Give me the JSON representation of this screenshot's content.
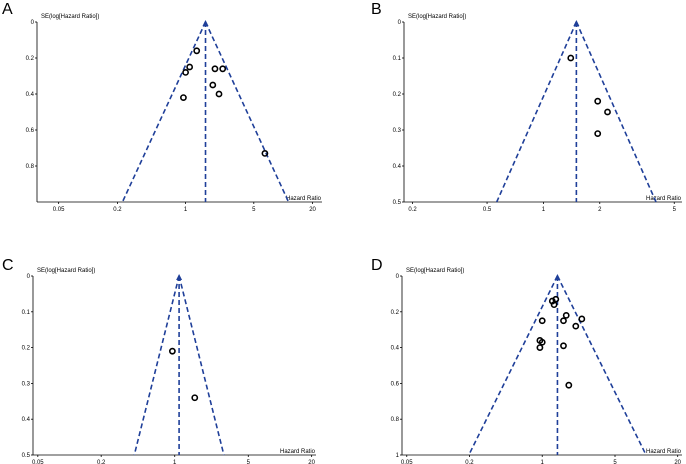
{
  "chart_data": [
    {
      "type": "scatter",
      "panel": "A",
      "title": "",
      "ylabel": "SE(log[Hazard Ratio])",
      "xlabel": "Hazard Ratio",
      "xscale": "log",
      "xlim": [
        0.03,
        25
      ],
      "ylim": [
        0,
        1
      ],
      "xticks": [
        0.05,
        0.2,
        1,
        5,
        20
      ],
      "xtick_labels": [
        "0.05",
        "0.2",
        "1",
        "5",
        "20"
      ],
      "yticks": [
        0,
        0.2,
        0.4,
        0.6,
        0.8
      ],
      "ytick_labels": [
        "0",
        "0.2",
        "0.4",
        "0.6",
        "0.8"
      ],
      "pooled_hr": 1.6,
      "points": [
        {
          "hr": 1.3,
          "se": 0.16
        },
        {
          "hr": 1.1,
          "se": 0.25
        },
        {
          "hr": 1.0,
          "se": 0.28
        },
        {
          "hr": 2.0,
          "se": 0.26
        },
        {
          "hr": 2.4,
          "se": 0.26
        },
        {
          "hr": 1.9,
          "se": 0.35
        },
        {
          "hr": 2.2,
          "se": 0.4
        },
        {
          "hr": 0.95,
          "se": 0.42
        },
        {
          "hr": 6.5,
          "se": 0.73
        }
      ]
    },
    {
      "type": "scatter",
      "panel": "B",
      "title": "",
      "ylabel": "SE(log[Hazard Ratio])",
      "xlabel": "Hazard Ratio",
      "xscale": "log",
      "xlim": [
        0.18,
        5.5
      ],
      "ylim": [
        0,
        0.5
      ],
      "xticks": [
        0.2,
        0.5,
        1,
        2,
        5
      ],
      "xtick_labels": [
        "0.2",
        "0.5",
        "1",
        "2",
        "5"
      ],
      "yticks": [
        0,
        0.1,
        0.2,
        0.3,
        0.4,
        0.5
      ],
      "ytick_labels": [
        "0",
        "0.1",
        "0.2",
        "0.3",
        "0.4",
        "0.5"
      ],
      "pooled_hr": 1.5,
      "points": [
        {
          "hr": 1.4,
          "se": 0.1
        },
        {
          "hr": 1.95,
          "se": 0.22
        },
        {
          "hr": 2.2,
          "se": 0.25
        },
        {
          "hr": 1.95,
          "se": 0.31
        }
      ]
    },
    {
      "type": "scatter",
      "panel": "C",
      "title": "",
      "ylabel": "SE(log[Hazard Ratio])",
      "xlabel": "Hazard Ratio",
      "xscale": "log",
      "xlim": [
        0.045,
        22
      ],
      "ylim": [
        0,
        0.5
      ],
      "xticks": [
        0.05,
        0.2,
        1,
        5,
        20
      ],
      "xtick_labels": [
        "0.05",
        "0.2",
        "1",
        "5",
        "20"
      ],
      "yticks": [
        0,
        0.1,
        0.2,
        0.3,
        0.4,
        0.5
      ],
      "ytick_labels": [
        "0",
        "0.1",
        "0.2",
        "0.3",
        "0.4",
        "0.5"
      ],
      "pooled_hr": 1.1,
      "points": [
        {
          "hr": 0.95,
          "se": 0.21
        },
        {
          "hr": 1.55,
          "se": 0.34
        }
      ]
    },
    {
      "type": "scatter",
      "panel": "D",
      "title": "",
      "ylabel": "SE(log[Hazard Ratio])",
      "xlabel": "Hazard Ratio",
      "xscale": "log",
      "xlim": [
        0.045,
        22
      ],
      "ylim": [
        0,
        1
      ],
      "xticks": [
        0.05,
        0.2,
        1,
        5,
        20
      ],
      "xtick_labels": [
        "0.05",
        "0.2",
        "1",
        "5",
        "20"
      ],
      "yticks": [
        0,
        0.2,
        0.4,
        0.6,
        0.8,
        1
      ],
      "ytick_labels": [
        "0",
        "0.2",
        "0.4",
        "0.6",
        "0.8",
        "1"
      ],
      "pooled_hr": 1.4,
      "points": [
        {
          "hr": 1.25,
          "se": 0.14
        },
        {
          "hr": 1.3,
          "se": 0.16
        },
        {
          "hr": 1.35,
          "se": 0.13
        },
        {
          "hr": 1.0,
          "se": 0.25
        },
        {
          "hr": 1.7,
          "se": 0.22
        },
        {
          "hr": 1.6,
          "se": 0.25
        },
        {
          "hr": 2.4,
          "se": 0.24
        },
        {
          "hr": 2.1,
          "se": 0.28
        },
        {
          "hr": 0.95,
          "se": 0.36
        },
        {
          "hr": 1.0,
          "se": 0.37
        },
        {
          "hr": 0.95,
          "se": 0.4
        },
        {
          "hr": 1.6,
          "se": 0.39
        },
        {
          "hr": 1.8,
          "se": 0.61
        }
      ]
    }
  ]
}
